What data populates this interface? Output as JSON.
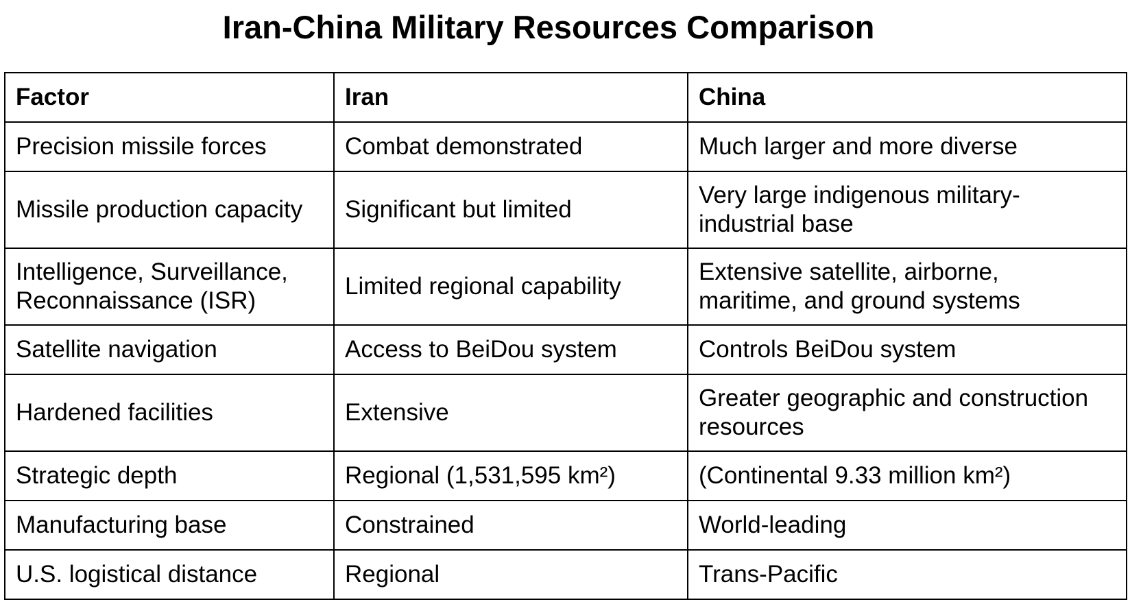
{
  "title": "Iran-China Military Resources Comparison",
  "table": {
    "headers": [
      "Factor",
      "Iran",
      "China"
    ],
    "rows": [
      {
        "factor": [
          "Precision missile forces"
        ],
        "iran": [
          "Combat demonstrated"
        ],
        "china": [
          "Much larger and more diverse"
        ]
      },
      {
        "factor": [
          "Missile production capacity"
        ],
        "iran": [
          "Significant but limited"
        ],
        "china": [
          "Very large indigenous military-",
          "industrial base"
        ]
      },
      {
        "factor": [
          "Intelligence, Surveillance,",
          "Reconnaissance (ISR)"
        ],
        "iran": [
          "Limited regional capability"
        ],
        "china": [
          "Extensive satellite, airborne,",
          "maritime, and ground systems"
        ]
      },
      {
        "factor": [
          "Satellite navigation"
        ],
        "iran": [
          "Access to BeiDou system"
        ],
        "china": [
          "Controls BeiDou system"
        ]
      },
      {
        "factor": [
          "Hardened facilities"
        ],
        "iran": [
          "Extensive"
        ],
        "china": [
          "Greater geographic and construction",
          "resources"
        ]
      },
      {
        "factor": [
          "Strategic depth"
        ],
        "iran": [
          "Regional (1,531,595 km²)"
        ],
        "china": [
          "(Continental 9.33 million km²)"
        ]
      },
      {
        "factor": [
          "Manufacturing base"
        ],
        "iran": [
          "Constrained"
        ],
        "china": [
          "World-leading"
        ]
      },
      {
        "factor": [
          "U.S. logistical distance"
        ],
        "iran": [
          "Regional"
        ],
        "china": [
          "Trans-Pacific"
        ]
      }
    ]
  }
}
